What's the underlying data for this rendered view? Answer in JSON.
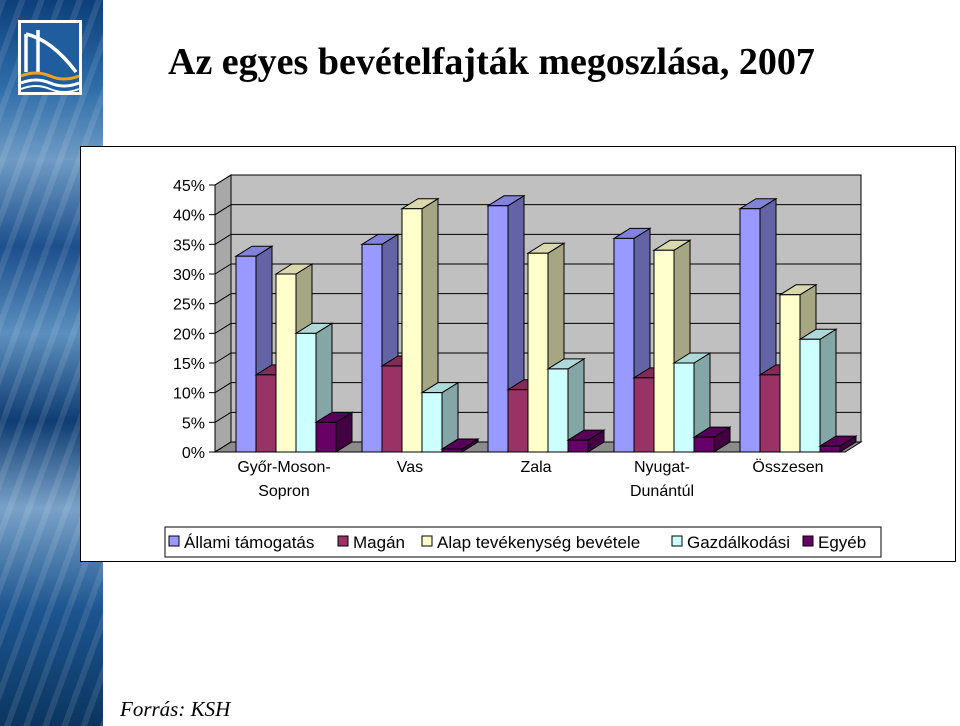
{
  "slide": {
    "title": "Az egyes bevételfajták megoszlása, 2007",
    "source": "Forrás: KSH",
    "logo_icon": "bridge-logo-icon",
    "side_strip_colors": [
      "#0d3f7a",
      "#5c8fbe",
      "#1d5590"
    ]
  },
  "chart_data": {
    "type": "bar",
    "variant": "3d-clustered-column",
    "title": "",
    "xlabel": "",
    "ylabel": "",
    "categories": [
      "Győr-Moson-Sopron",
      "Vas",
      "Zala",
      "Nyugat-Dunántúl",
      "Összesen"
    ],
    "category_lines": [
      [
        "Győr-Moson-",
        "Sopron"
      ],
      [
        "Vas"
      ],
      [
        "Zala"
      ],
      [
        "Nyugat-",
        "Dunántúl"
      ],
      [
        "Összesen"
      ]
    ],
    "ylim": [
      0,
      45
    ],
    "yticks": [
      0,
      5,
      10,
      15,
      20,
      25,
      30,
      35,
      40,
      45
    ],
    "ytick_labels": [
      "0%",
      "5%",
      "10%",
      "15%",
      "20%",
      "25%",
      "30%",
      "35%",
      "40%",
      "45%"
    ],
    "grid": true,
    "legend_position": "bottom",
    "series": [
      {
        "name": "Állami támogatás",
        "color": "#9999ff",
        "values": [
          33,
          35,
          41.5,
          36,
          41
        ]
      },
      {
        "name": "Magán",
        "color": "#993366",
        "values": [
          13,
          14.5,
          10.5,
          12.5,
          13
        ]
      },
      {
        "name": "Alap tevékenység bevétele",
        "color": "#ffffcc",
        "values": [
          30,
          41,
          33.5,
          34,
          26.5
        ]
      },
      {
        "name": "Gazdálkodási",
        "color": "#ccffff",
        "values": [
          20,
          10,
          14,
          15,
          19
        ]
      },
      {
        "name": "Egyéb",
        "color": "#660066",
        "values": [
          5,
          0.5,
          2,
          2.5,
          1
        ]
      }
    ]
  }
}
